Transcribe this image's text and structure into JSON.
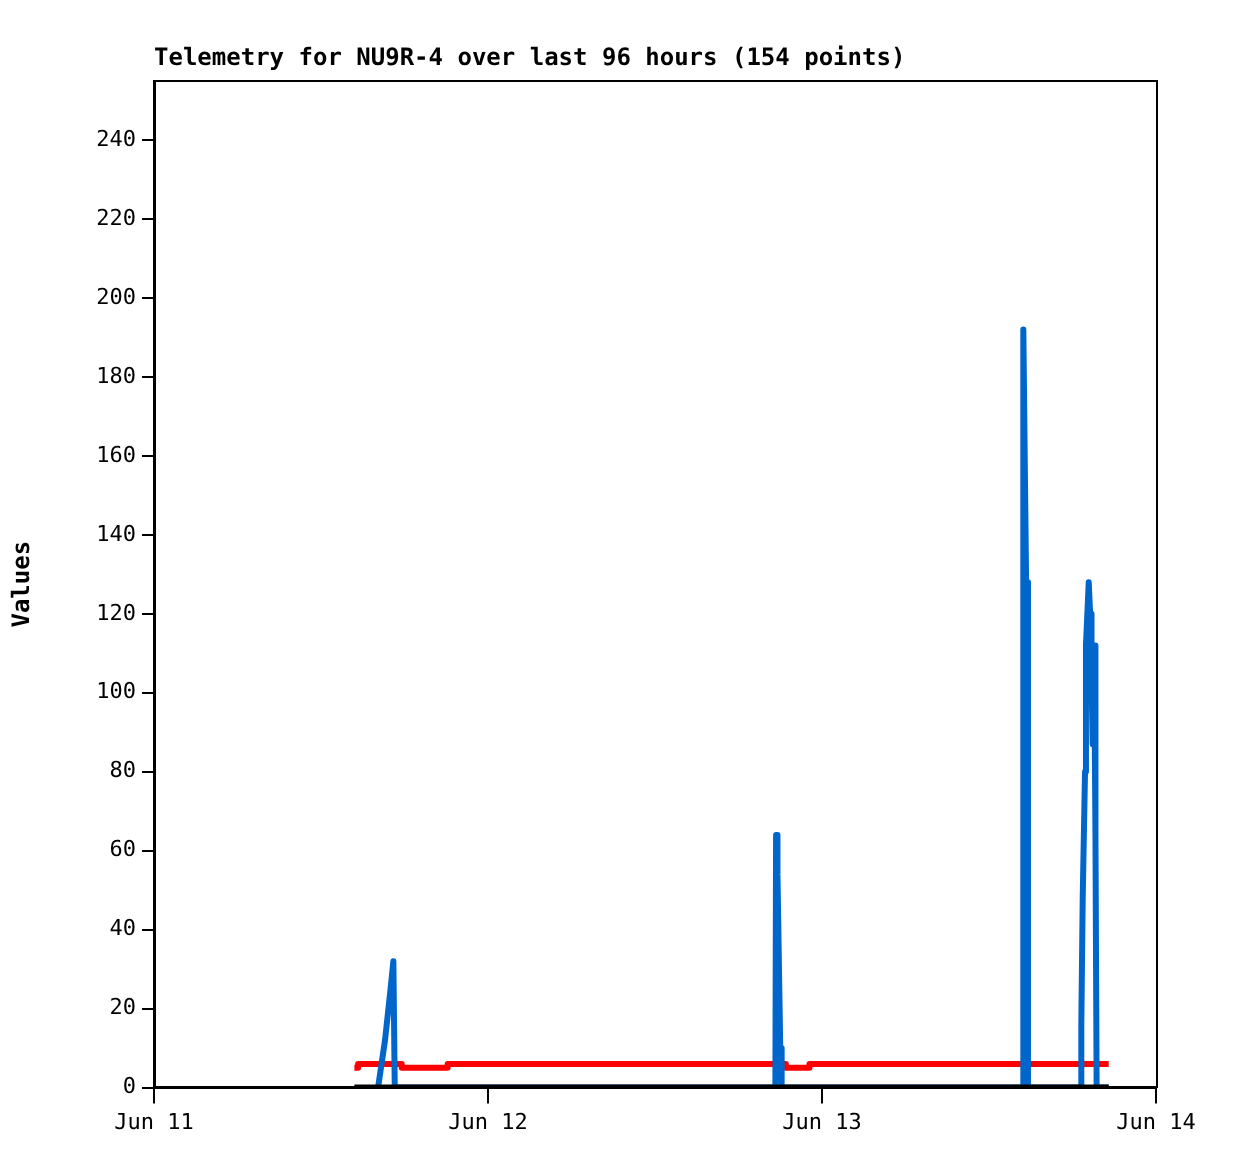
{
  "chart_data": {
    "type": "line",
    "title": "Telemetry for NU9R-4 over last 96 hours (154 points)",
    "ylabel": "Values",
    "xlim": [
      "--06-11T00:00",
      "--06-14T00:00"
    ],
    "xticks": [
      {
        "value": "--06-11T00:00",
        "label": "Jun 11"
      },
      {
        "value": "--06-12T00:00",
        "label": "Jun 12"
      },
      {
        "value": "--06-13T00:00",
        "label": "Jun 13"
      },
      {
        "value": "--06-14T00:00",
        "label": "Jun 14"
      }
    ],
    "ylim": [
      0,
      255
    ],
    "yticks": [
      0,
      20,
      40,
      60,
      80,
      100,
      120,
      140,
      160,
      180,
      200,
      220,
      240
    ],
    "marker": "none",
    "series": [
      {
        "color": "#000000",
        "x": [
          "--06-11T14:24",
          "--06-13T20:36"
        ],
        "values": [
          0,
          0
        ]
      },
      {
        "color": "#0066cc",
        "x": [
          "--06-11T16:06",
          "--06-11T16:36",
          "--06-11T17:00",
          "--06-11T17:12",
          "--06-11T17:18",
          "--06-12T20:39",
          "--06-12T20:42",
          "--06-12T20:48",
          "--06-12T20:54",
          "--06-12T21:00",
          "--06-12T21:06",
          "--06-13T14:27",
          "--06-13T14:28",
          "--06-13T14:40",
          "--06-13T14:48",
          "--06-13T18:36",
          "--06-13T18:38",
          "--06-13T18:44",
          "--06-13T18:54",
          "--06-13T18:58",
          "--06-13T19:10",
          "--06-13T19:16",
          "--06-13T19:22",
          "--06-13T19:27",
          "--06-13T19:33",
          "--06-13T19:39",
          "--06-13T19:44",
          "--06-13T20:36"
        ],
        "values": [
          0,
          12,
          25,
          32,
          0,
          0,
          64,
          54,
          32,
          10,
          0,
          0,
          192,
          128,
          0,
          0,
          16,
          48,
          80,
          112,
          128,
          120,
          104,
          87,
          112,
          64,
          0,
          0
        ]
      },
      {
        "type": "step",
        "color": "#ff0000",
        "x": [
          "--06-11T14:24",
          "--06-11T14:40",
          "--06-11T17:48",
          "--06-11T21:06",
          "--06-12T21:24",
          "--06-12T23:06",
          "--06-13T20:36"
        ],
        "values": [
          5,
          6,
          5,
          6,
          5,
          6,
          6
        ]
      }
    ]
  }
}
